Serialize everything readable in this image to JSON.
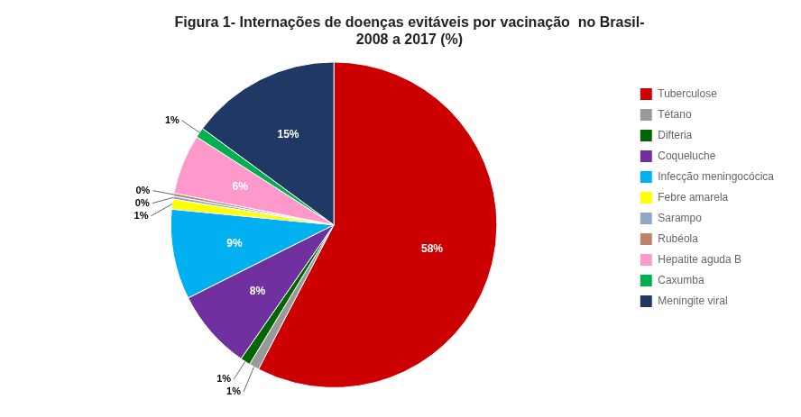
{
  "chart_data": {
    "type": "pie",
    "title": "Figura 1- Internações de doenças evitáveis por vacinação  no Brasil-\n2008 a 2017 (%)",
    "categories": [
      "Tuberculose",
      "Tétano",
      "Difteria",
      "Coqueluche",
      "Infecção meningocócica",
      "Febre amarela",
      "Sarampo",
      "Rubéola",
      "Hepatite aguda B",
      "Caxumba",
      "Meningite viral"
    ],
    "values": [
      58,
      1,
      1,
      8,
      9,
      1,
      0.3,
      0.3,
      6,
      1,
      15
    ],
    "value_labels": [
      "58%",
      "1%",
      "1%",
      "8%",
      "9%",
      "1%",
      "0%",
      "0%",
      "6%",
      "1%",
      "15%"
    ],
    "colors": [
      "#cc0000",
      "#999999",
      "#006600",
      "#7030a0",
      "#00b0f0",
      "#ffff00",
      "#8ea9c1",
      "#c0826d",
      "#ff99cc",
      "#00b050",
      "#1f3864"
    ],
    "data_labels": true,
    "legend": "right"
  }
}
